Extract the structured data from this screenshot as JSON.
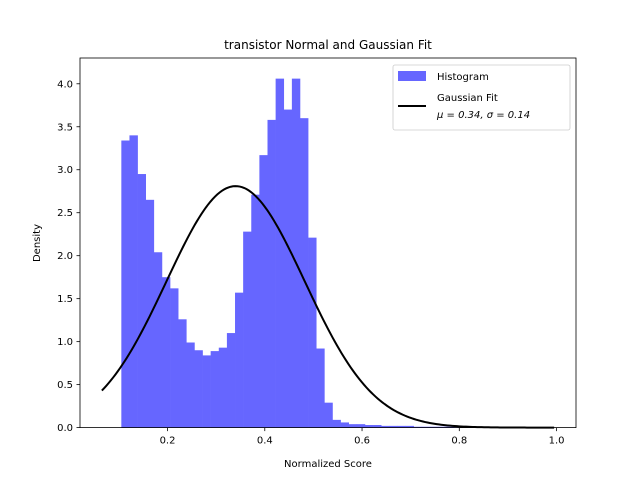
{
  "chart_data": {
    "type": "bar",
    "title": "transistor Normal and Gaussian Fit",
    "xlabel": "Normalized Score",
    "ylabel": "Density",
    "xlim": [
      0.02,
      1.04
    ],
    "ylim": [
      0,
      4.3
    ],
    "xticks": [
      0.2,
      0.4,
      0.6,
      0.8,
      1.0
    ],
    "xtick_labels": [
      "0.2",
      "0.4",
      "0.6",
      "0.8",
      "1.0"
    ],
    "yticks": [
      0.0,
      0.5,
      1.0,
      1.5,
      2.0,
      2.5,
      3.0,
      3.5,
      4.0
    ],
    "ytick_labels": [
      "0.0",
      "0.5",
      "1.0",
      "1.5",
      "2.0",
      "2.5",
      "3.0",
      "3.5",
      "4.0"
    ],
    "grid": false,
    "legend_position": "top-right",
    "histogram": {
      "name": "Histogram",
      "color": "#6666ff",
      "bin_start": 0.105,
      "bin_width": 0.0167,
      "values": [
        3.34,
        3.4,
        2.95,
        2.65,
        2.04,
        1.75,
        1.62,
        1.26,
        0.99,
        0.9,
        0.84,
        0.89,
        0.93,
        1.1,
        1.57,
        2.28,
        2.71,
        3.17,
        3.58,
        4.06,
        3.7,
        4.06,
        3.6,
        2.21,
        0.92,
        0.29,
        0.09,
        0.06,
        0.04,
        0.04,
        0.03,
        0.03,
        0.02,
        0.02,
        0.02,
        0.02,
        0.01,
        0.01,
        0.01,
        0.01,
        0.01,
        0.005,
        0.005,
        0.005,
        0.005,
        0.003,
        0.003,
        0.002,
        0.002,
        0.002,
        0.002,
        0.001,
        0.001,
        0.001
      ]
    },
    "fit": {
      "name_line1": "Gaussian Fit",
      "name_line2": "μ = 0.34,  σ = 0.14",
      "color": "#000000",
      "mu": 0.34,
      "sigma": 0.142,
      "x_range": [
        0.065,
        0.995
      ]
    }
  }
}
